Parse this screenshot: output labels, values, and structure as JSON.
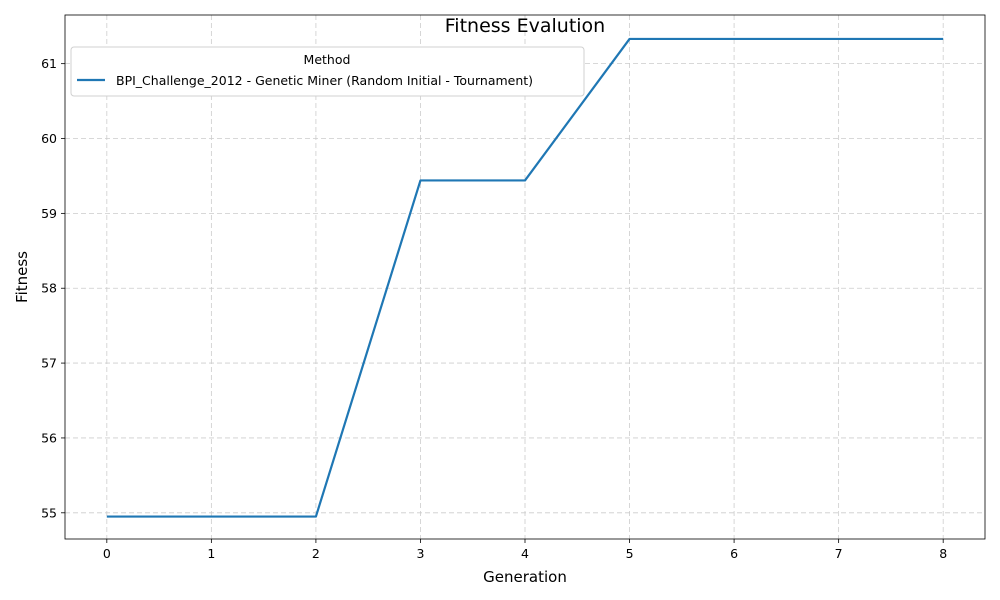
{
  "chart_data": {
    "type": "line",
    "title": "Fitness Evalution",
    "xlabel": "Generation",
    "ylabel": "Fitness",
    "xlim": [
      -0.4,
      8.4
    ],
    "ylim": [
      54.65,
      61.65
    ],
    "xticks": [
      0,
      1,
      2,
      3,
      4,
      5,
      6,
      7,
      8
    ],
    "yticks": [
      55,
      56,
      57,
      58,
      59,
      60,
      61
    ],
    "grid": true,
    "legend": {
      "title": "Method",
      "placement": "top-left"
    },
    "series": [
      {
        "name": "BPI_Challenge_2012 - Genetic Miner (Random Initial - Tournament)",
        "color": "#1f77b4",
        "x": [
          0,
          1,
          2,
          3,
          4,
          5,
          6,
          7,
          8
        ],
        "y": [
          54.95,
          54.95,
          54.95,
          59.44,
          59.44,
          61.33,
          61.33,
          61.33,
          61.33
        ]
      }
    ]
  }
}
